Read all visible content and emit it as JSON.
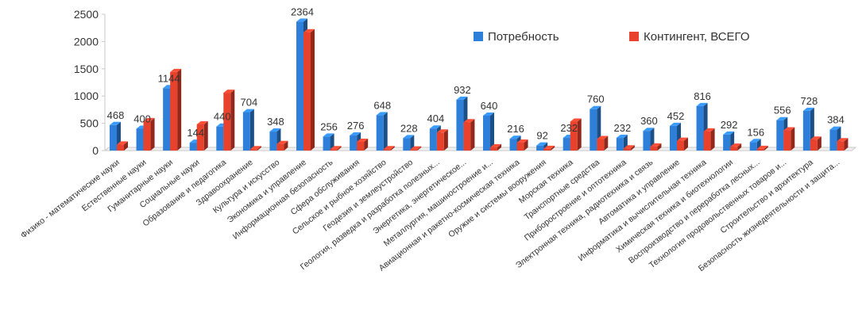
{
  "chart_data": {
    "type": "bar",
    "title": "",
    "xlabel": "",
    "ylabel": "",
    "ylim": [
      0,
      2500
    ],
    "yticks": [
      0,
      500,
      1000,
      1500,
      2000,
      2500
    ],
    "grid": false,
    "legend_position": "top-right",
    "categories": [
      "Физико - математические науки",
      "Естественные науки",
      "Гуманитарные науки",
      "Социальные науки",
      "Образование и педагогика",
      "Здравоохранение",
      "Культура и искусство",
      "Экономика и управление",
      "Информационная безопасность",
      "Сфера обслуживания",
      "Сельское и рыбное хозяйство",
      "Геодезия и землеустройство",
      "Геология, разведка и разработка полезных...",
      "Энергетика, энергетическое...",
      "Металлургия, машиностроение и...",
      "Авиационная и ракетно-космическая техника",
      "Оружие и системы вооружения",
      "Морская техника",
      "Транспортные средства",
      "Приборостроение и оптотехника",
      "Электронная техника, радиотехника и связь",
      "Автоматика и управление",
      "Информатика и вычислительная техника",
      "Химическая техника и биотехнологии",
      "Воспроизводство и переработка лесных...",
      "Технология продовольственных товаров и...",
      "Строительство и архитектура",
      "Безопасность жизнедеятельности и защита..."
    ],
    "series": [
      {
        "name": "Потребность",
        "color": "#2e7fd9",
        "values": [
          468,
          400,
          1144,
          144,
          440,
          704,
          348,
          2364,
          256,
          276,
          648,
          228,
          404,
          932,
          640,
          216,
          92,
          232,
          760,
          232,
          360,
          452,
          816,
          292,
          156,
          556,
          728,
          384
        ],
        "labels": [
          "468",
          "400",
          "1144",
          "144",
          "440",
          "704",
          "348",
          "2364",
          "256",
          "276",
          "648",
          "228",
          "404",
          "932",
          "640",
          "216",
          "92",
          "232",
          "760",
          "232",
          "360",
          "452",
          "816",
          "292",
          "156",
          "556",
          "728",
          "384"
        ]
      },
      {
        "name": "Контингент, ВСЕГО",
        "color": "#e8412c",
        "values": [
          110,
          540,
          1440,
          480,
          1060,
          25,
          120,
          2170,
          25,
          160,
          25,
          20,
          330,
          520,
          60,
          145,
          30,
          530,
          210,
          40,
          75,
          180,
          350,
          70,
          30,
          370,
          200,
          170
        ]
      }
    ]
  }
}
